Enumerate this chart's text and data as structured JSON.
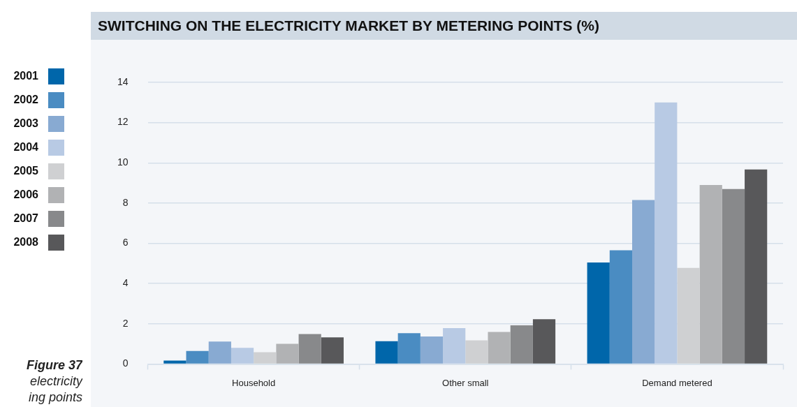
{
  "chart_data": {
    "type": "bar",
    "title": "SWITCHING ON THE ELECTRICITY MARKET BY METERING POINTS (%)",
    "categories": [
      "Household",
      "Other small",
      "Demand metered"
    ],
    "series": [
      {
        "name": "2001",
        "color": "#0066aa",
        "values": [
          0.17,
          1.13,
          5.05
        ]
      },
      {
        "name": "2002",
        "color": "#4a8cc2",
        "values": [
          0.65,
          1.53,
          5.65
        ]
      },
      {
        "name": "2003",
        "color": "#88aad2",
        "values": [
          1.12,
          1.37,
          8.15
        ]
      },
      {
        "name": "2004",
        "color": "#b8cae4",
        "values": [
          0.8,
          1.78,
          13.0
        ]
      },
      {
        "name": "2005",
        "color": "#cfd0d2",
        "values": [
          0.59,
          1.18,
          4.78
        ]
      },
      {
        "name": "2006",
        "color": "#b1b2b4",
        "values": [
          1.0,
          1.59,
          8.9
        ]
      },
      {
        "name": "2007",
        "color": "#88898b",
        "values": [
          1.49,
          1.92,
          8.7
        ]
      },
      {
        "name": "2008",
        "color": "#58585a",
        "values": [
          1.32,
          2.23,
          9.67
        ]
      }
    ],
    "ylim": [
      0,
      14
    ],
    "yticks": [
      0,
      2,
      4,
      6,
      8,
      10,
      12,
      14
    ],
    "grid": "y",
    "legend": "left",
    "annotations": [
      "Figure 37",
      "electricity",
      "ing points"
    ]
  }
}
